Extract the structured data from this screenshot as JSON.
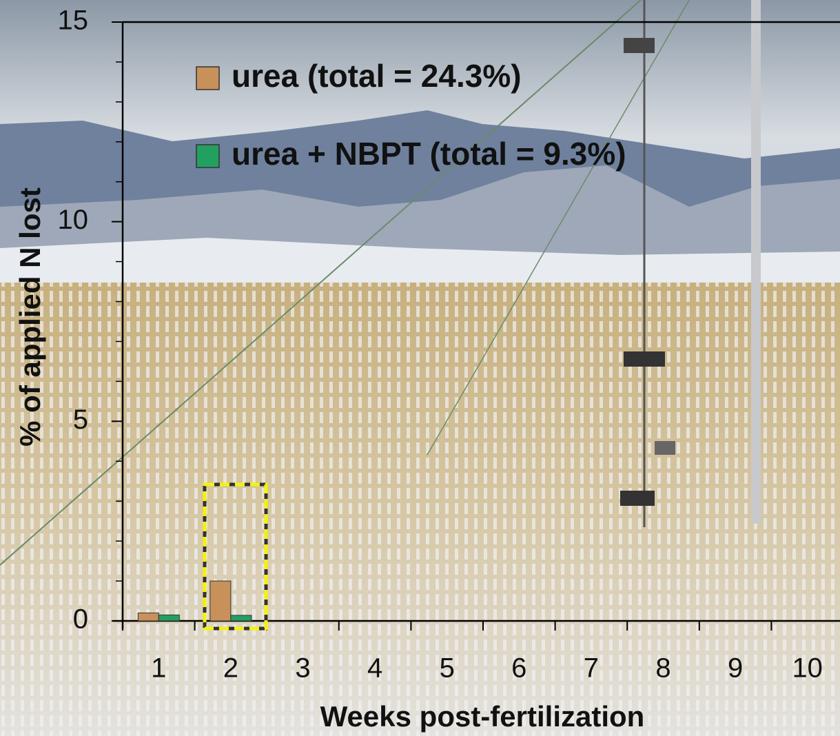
{
  "chart_data": {
    "type": "bar",
    "x_label": "Weeks post-fertilization",
    "y_label": "%  of applied N lost",
    "categories": [
      "1",
      "2",
      "3",
      "4",
      "5",
      "6",
      "7",
      "8",
      "9",
      "10"
    ],
    "series": [
      {
        "name": "urea (total = 24.3%)",
        "color": "#c8915a",
        "values": [
          0.2,
          1.0,
          null,
          null,
          null,
          null,
          null,
          null,
          null,
          null
        ]
      },
      {
        "name": "urea + NBPT (total = 9.3%)",
        "color": "#22a060",
        "values": [
          0.15,
          0.14,
          null,
          null,
          null,
          null,
          null,
          null,
          null,
          null
        ]
      }
    ],
    "ylim": [
      0,
      15
    ],
    "yticks": [
      0,
      5,
      10,
      15
    ],
    "yminorticks": [
      1,
      2,
      3,
      4,
      6,
      7,
      8,
      9,
      11,
      12,
      13,
      14
    ],
    "grid": false
  }
}
